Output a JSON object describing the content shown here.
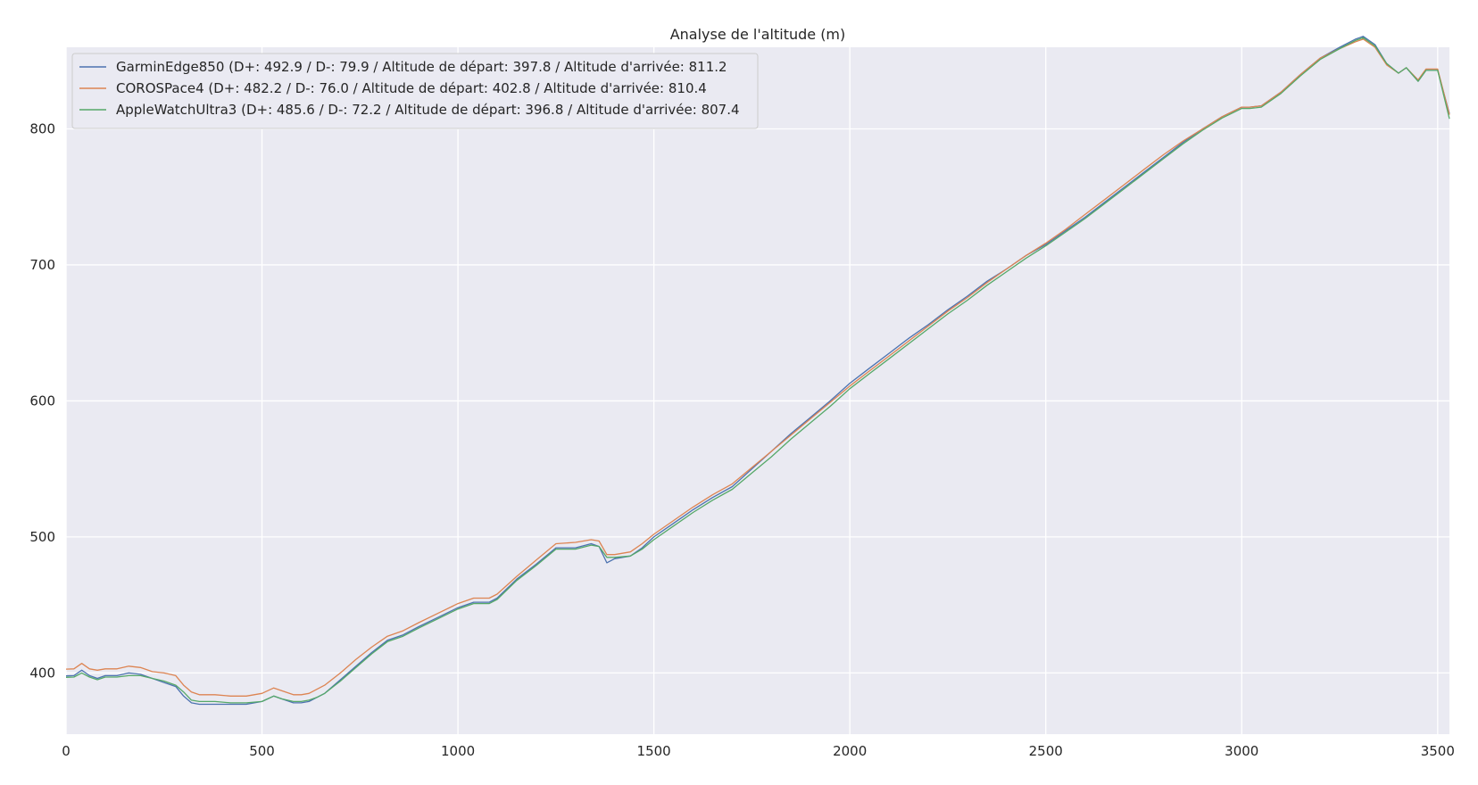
{
  "chart_data": {
    "type": "line",
    "title": "Analyse de l'altitude (m)",
    "xlabel": "",
    "ylabel": "",
    "xlim": [
      0,
      3530
    ],
    "ylim": [
      355,
      860
    ],
    "x_ticks": [
      0,
      500,
      1000,
      1500,
      2000,
      2500,
      3000,
      3500
    ],
    "y_ticks": [
      400,
      500,
      600,
      700,
      800
    ],
    "grid": true,
    "legend_position": "top-left",
    "series": [
      {
        "name": "GarminEdge850 (D+: 492.9 / D-: 79.9 / Altitude de départ: 397.8 / Altitude d'arrivée: 811.2",
        "color": "#4c72b0",
        "x": [
          0,
          20,
          40,
          60,
          80,
          100,
          130,
          160,
          190,
          220,
          250,
          280,
          300,
          320,
          340,
          380,
          420,
          460,
          500,
          530,
          550,
          580,
          600,
          620,
          640,
          660,
          700,
          740,
          780,
          820,
          860,
          900,
          950,
          1000,
          1040,
          1080,
          1100,
          1150,
          1200,
          1250,
          1300,
          1340,
          1360,
          1380,
          1400,
          1440,
          1470,
          1500,
          1550,
          1600,
          1650,
          1700,
          1750,
          1800,
          1850,
          1900,
          1950,
          2000,
          2050,
          2100,
          2150,
          2200,
          2250,
          2300,
          2350,
          2400,
          2450,
          2500,
          2550,
          2600,
          2650,
          2700,
          2750,
          2800,
          2850,
          2900,
          2950,
          3000,
          3020,
          3050,
          3100,
          3150,
          3200,
          3250,
          3290,
          3310,
          3340,
          3370,
          3400,
          3420,
          3450,
          3470,
          3500,
          3530
        ],
        "y": [
          397.8,
          398,
          402,
          398,
          396,
          398,
          398,
          400,
          399,
          396,
          393,
          390,
          383,
          378,
          377,
          377,
          377,
          377,
          379,
          383,
          381,
          378,
          378,
          379,
          382,
          385,
          395,
          405,
          415,
          424,
          428,
          434,
          441,
          448,
          452,
          452,
          455,
          469,
          480,
          492,
          492,
          495,
          493,
          481,
          484,
          486,
          492,
          500,
          510,
          520,
          529,
          537,
          550,
          563,
          576,
          588,
          600,
          613,
          624,
          635,
          646,
          656,
          667,
          677,
          688,
          697,
          707,
          715,
          725,
          735,
          746,
          757,
          768,
          779,
          790,
          800,
          809,
          816,
          816,
          817,
          827,
          840,
          852,
          860,
          866,
          868,
          862,
          848,
          841,
          845,
          835,
          843,
          843,
          811.2
        ]
      },
      {
        "name": "COROSPace4 (D+: 482.2 / D-: 76.0 / Altitude de départ: 402.8 / Altitude d'arrivée: 810.4",
        "color": "#dd8452",
        "x": [
          0,
          20,
          40,
          60,
          80,
          100,
          130,
          160,
          190,
          220,
          250,
          280,
          300,
          320,
          340,
          380,
          420,
          460,
          500,
          530,
          550,
          580,
          600,
          620,
          640,
          660,
          700,
          740,
          780,
          820,
          860,
          900,
          950,
          1000,
          1040,
          1080,
          1100,
          1150,
          1200,
          1250,
          1300,
          1340,
          1360,
          1380,
          1400,
          1440,
          1470,
          1500,
          1550,
          1600,
          1650,
          1700,
          1750,
          1800,
          1850,
          1900,
          1950,
          2000,
          2050,
          2100,
          2150,
          2200,
          2250,
          2300,
          2350,
          2400,
          2450,
          2500,
          2550,
          2600,
          2650,
          2700,
          2750,
          2800,
          2850,
          2900,
          2950,
          3000,
          3020,
          3050,
          3100,
          3150,
          3200,
          3250,
          3290,
          3310,
          3340,
          3370,
          3400,
          3420,
          3450,
          3470,
          3500,
          3530
        ],
        "y": [
          402.8,
          403,
          407,
          403,
          402,
          403,
          403,
          405,
          404,
          401,
          400,
          398,
          391,
          386,
          384,
          384,
          383,
          383,
          385,
          389,
          387,
          384,
          384,
          385,
          388,
          391,
          400,
          410,
          419,
          427,
          431,
          437,
          444,
          451,
          455,
          455,
          458,
          471,
          483,
          495,
          496,
          498,
          497,
          487,
          487,
          489,
          495,
          502,
          512,
          522,
          531,
          539,
          551,
          563,
          575,
          587,
          599,
          611,
          622,
          633,
          644,
          655,
          666,
          676,
          687,
          697,
          707,
          716,
          726,
          737,
          748,
          759,
          770,
          781,
          791,
          800,
          809,
          816,
          816,
          817,
          827,
          840,
          852,
          859,
          864,
          866,
          860,
          847,
          841,
          845,
          836,
          844,
          844,
          810.4
        ]
      },
      {
        "name": "AppleWatchUltra3 (D+: 485.6 / D-: 72.2 / Altitude de départ: 396.8 / Altitude d'arrivée: 807.4",
        "color": "#55a868",
        "x": [
          0,
          20,
          40,
          60,
          80,
          100,
          130,
          160,
          190,
          220,
          250,
          280,
          300,
          320,
          340,
          380,
          420,
          460,
          500,
          530,
          550,
          580,
          600,
          620,
          640,
          660,
          700,
          740,
          780,
          820,
          860,
          900,
          950,
          1000,
          1040,
          1080,
          1100,
          1150,
          1200,
          1250,
          1300,
          1340,
          1360,
          1380,
          1400,
          1440,
          1470,
          1500,
          1550,
          1600,
          1650,
          1700,
          1750,
          1800,
          1850,
          1900,
          1950,
          2000,
          2050,
          2100,
          2150,
          2200,
          2250,
          2300,
          2350,
          2400,
          2450,
          2500,
          2550,
          2600,
          2650,
          2700,
          2750,
          2800,
          2850,
          2900,
          2950,
          3000,
          3020,
          3050,
          3100,
          3150,
          3200,
          3250,
          3290,
          3310,
          3340,
          3370,
          3400,
          3420,
          3450,
          3470,
          3500,
          3530
        ],
        "y": [
          396.8,
          397,
          400,
          397,
          395,
          397,
          397,
          398,
          398,
          396,
          394,
          391,
          386,
          380,
          379,
          379,
          378,
          378,
          379,
          383,
          381,
          379,
          379,
          380,
          382,
          385,
          394,
          404,
          414,
          423,
          427,
          433,
          440,
          447,
          451,
          451,
          454,
          468,
          479,
          491,
          491,
          494,
          493,
          485,
          485,
          486,
          491,
          498,
          508,
          518,
          527,
          535,
          547,
          559,
          572,
          584,
          596,
          609,
          620,
          631,
          642,
          653,
          664,
          674,
          685,
          695,
          705,
          714,
          724,
          734,
          745,
          756,
          767,
          778,
          789,
          799,
          808,
          815,
          815,
          816,
          826,
          839,
          851,
          859,
          865,
          867,
          861,
          848,
          841,
          845,
          835,
          843,
          843,
          807.4
        ]
      }
    ]
  }
}
